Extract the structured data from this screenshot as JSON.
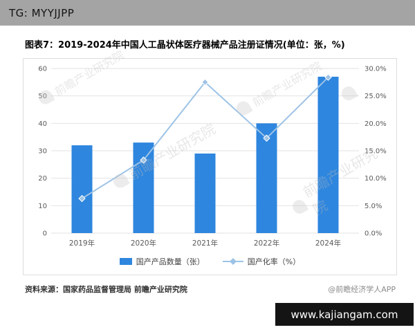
{
  "header": {
    "tag": "TG: MYYJJPP"
  },
  "title": "图表7：2019-2024年中国人工晶状体医疗器械产品注册证情况(单位：张，%)",
  "chart_data": {
    "type": "bar+line",
    "title": "2019-2024年中国人工晶状体医疗器械产品注册证情况",
    "unit_note": "单位：张，%",
    "categories": [
      "2019年",
      "2020年",
      "2021年",
      "2022年",
      "2024年"
    ],
    "series": [
      {
        "name": "国产产品数量（张）",
        "type": "bar",
        "axis": "left",
        "color": "#2E86DE",
        "values": [
          32,
          33,
          29,
          40,
          57
        ]
      },
      {
        "name": "国产化率（%）",
        "type": "line",
        "axis": "right",
        "color": "#9DC3E6",
        "values": [
          6.3,
          13.3,
          27.5,
          17.3,
          28.4
        ]
      }
    ],
    "left_axis": {
      "min": 0,
      "max": 60,
      "step": 10
    },
    "right_axis": {
      "min": 0,
      "max": 30,
      "step": 5,
      "format": "percent_one_decimal"
    },
    "grid": true,
    "legend_position": "bottom",
    "colors": {
      "grid": "#e2e2e2",
      "axis_text": "#595959"
    }
  },
  "footer": {
    "source": "资料来源：国家药品监督管理局 前瞻产业研究院",
    "credit": "@前瞻经济学人APP",
    "site": "www.kajiangam.com"
  },
  "watermark": {
    "text": "前瞻产业研究院"
  }
}
